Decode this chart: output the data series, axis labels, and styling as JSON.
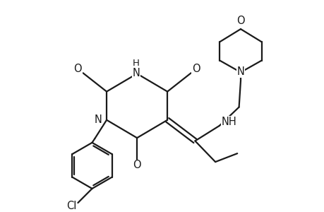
{
  "bg_color": "#ffffff",
  "line_color": "#1a1a1a",
  "line_width": 1.6,
  "font_size": 10.5,
  "figsize": [
    4.6,
    3.0
  ],
  "dpi": 100,
  "xlim": [
    0,
    9.2
  ],
  "ylim": [
    0,
    6.0
  ]
}
